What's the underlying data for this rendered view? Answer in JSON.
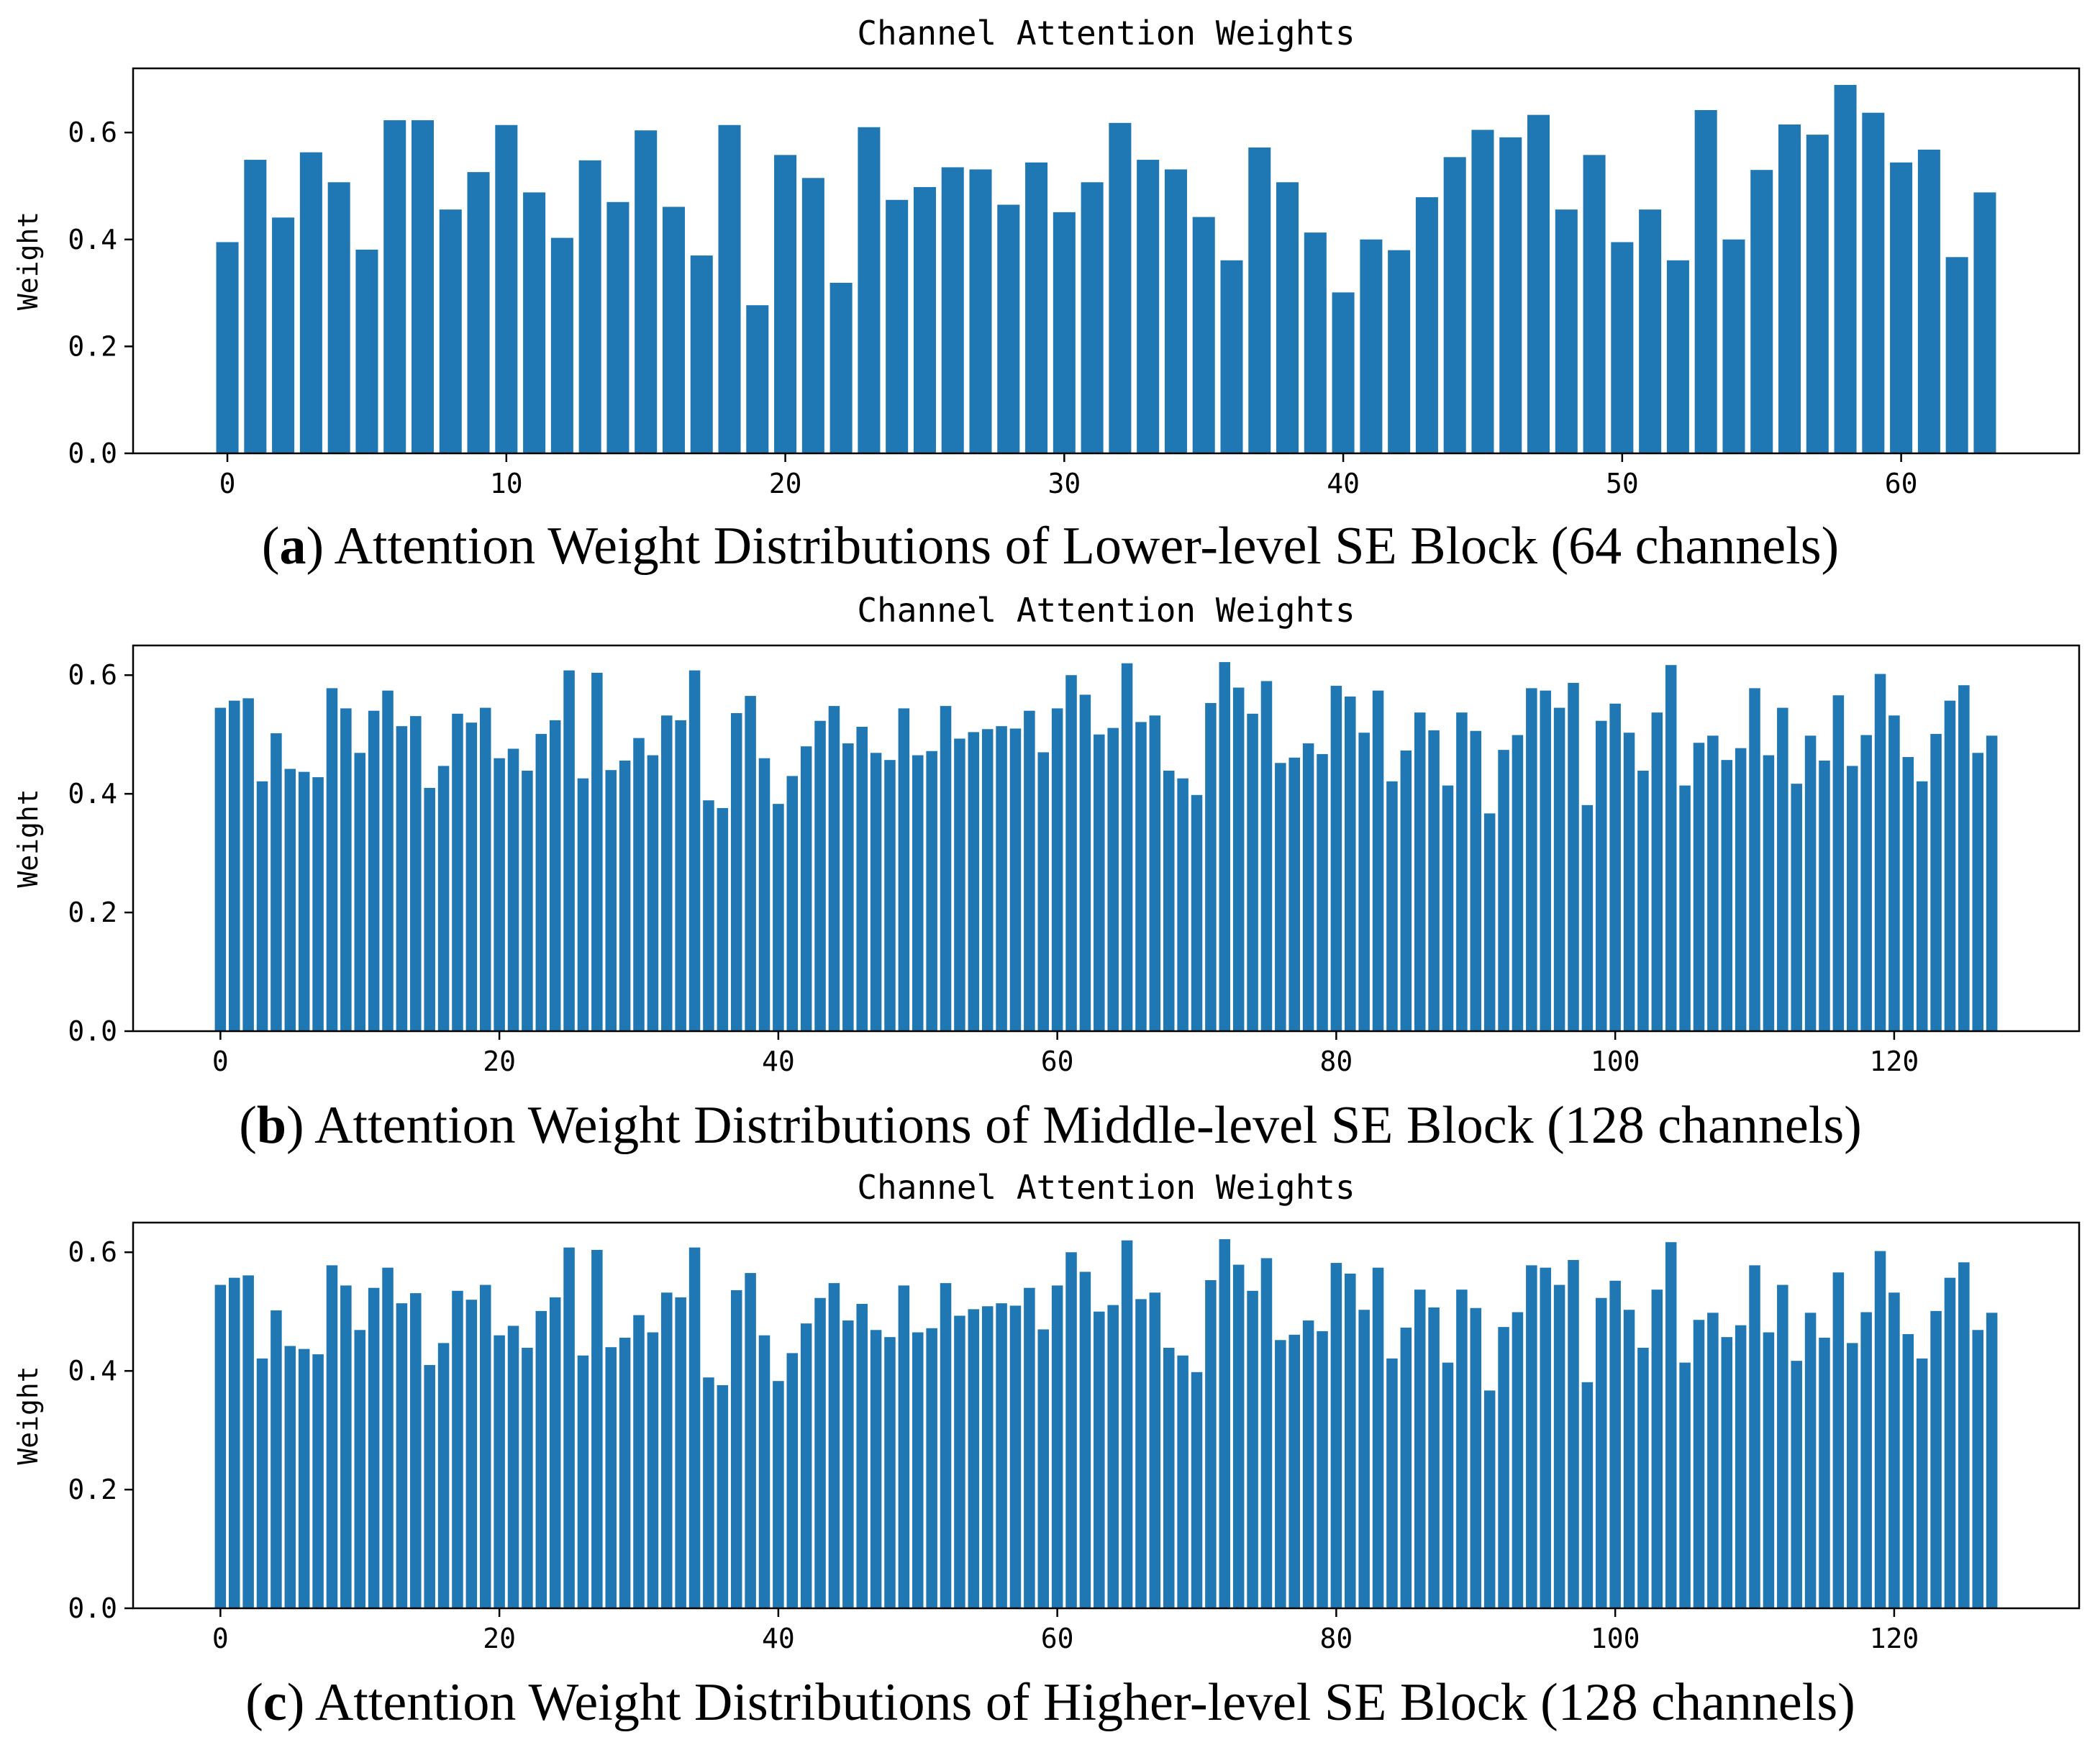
{
  "chart_data": [
    {
      "type": "bar",
      "title": "Channel Attention Weights",
      "xlabel": "",
      "ylabel": "Weight",
      "ylim": [
        0,
        0.72
      ],
      "yticks": [
        0.0,
        0.2,
        0.4,
        0.6
      ],
      "xticks": [
        0,
        10,
        20,
        30,
        40,
        50,
        60
      ],
      "x": [
        0,
        1,
        2,
        3,
        4,
        5,
        6,
        7,
        8,
        9,
        10,
        11,
        12,
        13,
        14,
        15,
        16,
        17,
        18,
        19,
        20,
        21,
        22,
        23,
        24,
        25,
        26,
        27,
        28,
        29,
        30,
        31,
        32,
        33,
        34,
        35,
        36,
        37,
        38,
        39,
        40,
        41,
        42,
        43,
        44,
        45,
        46,
        47,
        48,
        49,
        50,
        51,
        52,
        53,
        54,
        55,
        56,
        57,
        58,
        59,
        60,
        61,
        62,
        63
      ],
      "values": [
        0.395,
        0.549,
        0.441,
        0.563,
        0.507,
        0.381,
        0.623,
        0.623,
        0.456,
        0.526,
        0.614,
        0.488,
        0.403,
        0.548,
        0.47,
        0.604,
        0.461,
        0.37,
        0.614,
        0.277,
        0.558,
        0.515,
        0.319,
        0.61,
        0.474,
        0.498,
        0.535,
        0.531,
        0.465,
        0.544,
        0.451,
        0.507,
        0.618,
        0.549,
        0.531,
        0.442,
        0.361,
        0.572,
        0.507,
        0.413,
        0.301,
        0.4,
        0.38,
        0.479,
        0.554,
        0.605,
        0.591,
        0.633,
        0.456,
        0.558,
        0.395,
        0.456,
        0.361,
        0.642,
        0.4,
        0.53,
        0.615,
        0.596,
        0.689,
        0.637,
        0.544,
        0.568,
        0.367,
        0.488
      ],
      "caption_letter": "a",
      "caption_text": "Attention Weight Distributions of Lower-level SE Block (64 channels)"
    },
    {
      "type": "bar",
      "title": "Channel Attention Weights",
      "xlabel": "",
      "ylabel": "Weight",
      "ylim": [
        0,
        0.65
      ],
      "yticks": [
        0.0,
        0.2,
        0.4,
        0.6
      ],
      "xticks": [
        0,
        20,
        40,
        60,
        80,
        100,
        120
      ],
      "x": [
        0,
        1,
        2,
        3,
        4,
        5,
        6,
        7,
        8,
        9,
        10,
        11,
        12,
        13,
        14,
        15,
        16,
        17,
        18,
        19,
        20,
        21,
        22,
        23,
        24,
        25,
        26,
        27,
        28,
        29,
        30,
        31,
        32,
        33,
        34,
        35,
        36,
        37,
        38,
        39,
        40,
        41,
        42,
        43,
        44,
        45,
        46,
        47,
        48,
        49,
        50,
        51,
        52,
        53,
        54,
        55,
        56,
        57,
        58,
        59,
        60,
        61,
        62,
        63,
        64,
        65,
        66,
        67,
        68,
        69,
        70,
        71,
        72,
        73,
        74,
        75,
        76,
        77,
        78,
        79,
        80,
        81,
        82,
        83,
        84,
        85,
        86,
        87,
        88,
        89,
        90,
        91,
        92,
        93,
        94,
        95,
        96,
        97,
        98,
        99,
        100,
        101,
        102,
        103,
        104,
        105,
        106,
        107,
        108,
        109,
        110,
        111,
        112,
        113,
        114,
        115,
        116,
        117,
        118,
        119,
        120,
        121,
        122,
        123,
        124,
        125,
        126,
        127
      ],
      "values": [
        0.545,
        0.557,
        0.561,
        0.421,
        0.502,
        0.442,
        0.437,
        0.428,
        0.578,
        0.544,
        0.469,
        0.54,
        0.574,
        0.514,
        0.531,
        0.41,
        0.447,
        0.535,
        0.52,
        0.545,
        0.46,
        0.476,
        0.439,
        0.501,
        0.524,
        0.608,
        0.426,
        0.604,
        0.44,
        0.456,
        0.494,
        0.465,
        0.532,
        0.524,
        0.608,
        0.389,
        0.376,
        0.536,
        0.565,
        0.46,
        0.383,
        0.43,
        0.48,
        0.523,
        0.548,
        0.485,
        0.513,
        0.469,
        0.457,
        0.544,
        0.465,
        0.472,
        0.548,
        0.493,
        0.504,
        0.509,
        0.514,
        0.51,
        0.54,
        0.47,
        0.544,
        0.6,
        0.567,
        0.5,
        0.511,
        0.62,
        0.521,
        0.532,
        0.439,
        0.426,
        0.398,
        0.553,
        0.622,
        0.579,
        0.535,
        0.59,
        0.452,
        0.461,
        0.485,
        0.467,
        0.582,
        0.564,
        0.503,
        0.574,
        0.421,
        0.473,
        0.537,
        0.507,
        0.414,
        0.537,
        0.506,
        0.367,
        0.474,
        0.499,
        0.578,
        0.574,
        0.545,
        0.587,
        0.381,
        0.523,
        0.552,
        0.503,
        0.439,
        0.537,
        0.617,
        0.414,
        0.486,
        0.498,
        0.457,
        0.477,
        0.578,
        0.465,
        0.545,
        0.417,
        0.498,
        0.456,
        0.566,
        0.447,
        0.499,
        0.602,
        0.532,
        0.462,
        0.421,
        0.501,
        0.557,
        0.583,
        0.469,
        0.498
      ],
      "caption_letter": "b",
      "caption_text": "Attention Weight Distributions of Middle-level SE Block (128 channels)"
    },
    {
      "type": "bar",
      "title": "Channel Attention Weights",
      "xlabel": "",
      "ylabel": "Weight",
      "ylim": [
        0,
        0.65
      ],
      "yticks": [
        0.0,
        0.2,
        0.4,
        0.6
      ],
      "xticks": [
        0,
        20,
        40,
        60,
        80,
        100,
        120
      ],
      "x": [
        0,
        1,
        2,
        3,
        4,
        5,
        6,
        7,
        8,
        9,
        10,
        11,
        12,
        13,
        14,
        15,
        16,
        17,
        18,
        19,
        20,
        21,
        22,
        23,
        24,
        25,
        26,
        27,
        28,
        29,
        30,
        31,
        32,
        33,
        34,
        35,
        36,
        37,
        38,
        39,
        40,
        41,
        42,
        43,
        44,
        45,
        46,
        47,
        48,
        49,
        50,
        51,
        52,
        53,
        54,
        55,
        56,
        57,
        58,
        59,
        60,
        61,
        62,
        63,
        64,
        65,
        66,
        67,
        68,
        69,
        70,
        71,
        72,
        73,
        74,
        75,
        76,
        77,
        78,
        79,
        80,
        81,
        82,
        83,
        84,
        85,
        86,
        87,
        88,
        89,
        90,
        91,
        92,
        93,
        94,
        95,
        96,
        97,
        98,
        99,
        100,
        101,
        102,
        103,
        104,
        105,
        106,
        107,
        108,
        109,
        110,
        111,
        112,
        113,
        114,
        115,
        116,
        117,
        118,
        119,
        120,
        121,
        122,
        123,
        124,
        125,
        126,
        127
      ],
      "values": [
        0.545,
        0.557,
        0.561,
        0.421,
        0.502,
        0.442,
        0.437,
        0.428,
        0.578,
        0.544,
        0.469,
        0.54,
        0.574,
        0.514,
        0.531,
        0.41,
        0.447,
        0.535,
        0.52,
        0.545,
        0.46,
        0.476,
        0.439,
        0.501,
        0.524,
        0.608,
        0.426,
        0.604,
        0.44,
        0.456,
        0.494,
        0.465,
        0.532,
        0.524,
        0.608,
        0.389,
        0.376,
        0.536,
        0.565,
        0.46,
        0.383,
        0.43,
        0.48,
        0.523,
        0.548,
        0.485,
        0.513,
        0.469,
        0.457,
        0.544,
        0.465,
        0.472,
        0.548,
        0.493,
        0.504,
        0.509,
        0.514,
        0.51,
        0.54,
        0.47,
        0.544,
        0.6,
        0.567,
        0.5,
        0.511,
        0.62,
        0.521,
        0.532,
        0.439,
        0.426,
        0.398,
        0.553,
        0.622,
        0.579,
        0.535,
        0.59,
        0.452,
        0.461,
        0.485,
        0.467,
        0.582,
        0.564,
        0.503,
        0.574,
        0.421,
        0.473,
        0.537,
        0.507,
        0.414,
        0.537,
        0.506,
        0.367,
        0.474,
        0.499,
        0.578,
        0.574,
        0.545,
        0.587,
        0.381,
        0.523,
        0.552,
        0.503,
        0.439,
        0.537,
        0.617,
        0.414,
        0.486,
        0.498,
        0.457,
        0.477,
        0.578,
        0.465,
        0.545,
        0.417,
        0.498,
        0.456,
        0.566,
        0.447,
        0.499,
        0.602,
        0.532,
        0.462,
        0.421,
        0.501,
        0.557,
        0.583,
        0.469,
        0.498
      ],
      "caption_letter": "c",
      "caption_text": "Attention Weight Distributions of Higher-level SE Block (128 channels)"
    }
  ]
}
